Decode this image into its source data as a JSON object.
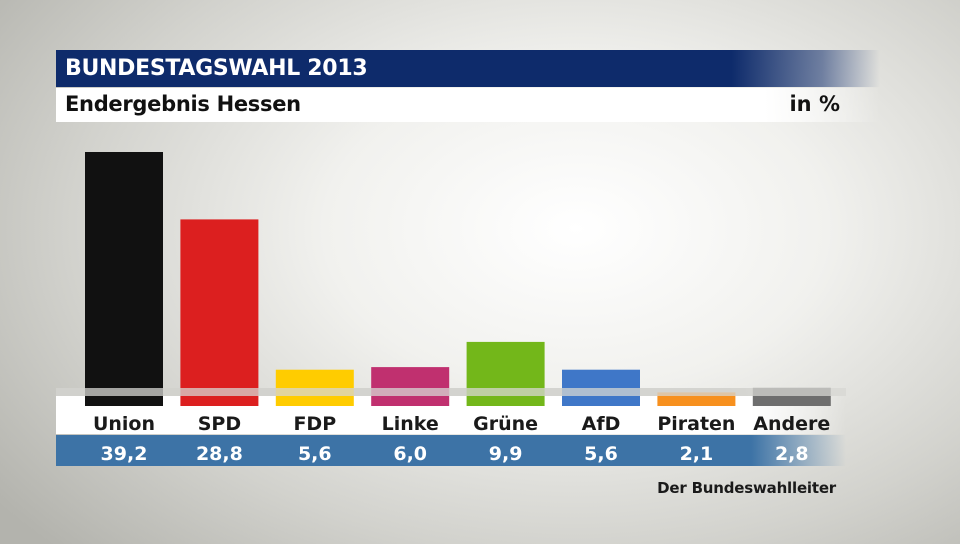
{
  "header": {
    "title": "BUNDESTAGSWAHL 2013",
    "subtitle": "Endergebnis Hessen",
    "unit": "in %"
  },
  "source": "Der Bundeswahlleiter",
  "chart_data": {
    "type": "bar",
    "title": "BUNDESTAGSWAHL 2013",
    "subtitle": "Endergebnis Hessen",
    "unit": "in %",
    "categories": [
      "Union",
      "SPD",
      "FDP",
      "Linke",
      "Grüne",
      "AfD",
      "Piraten",
      "Andere"
    ],
    "values": [
      39.2,
      28.8,
      5.6,
      6.0,
      9.9,
      5.6,
      2.1,
      2.8
    ],
    "value_labels": [
      "39,2",
      "28,8",
      "5,6",
      "6,0",
      "9,9",
      "5,6",
      "2,1",
      "2,8"
    ],
    "colors": [
      "#111111",
      "#dc1f1f",
      "#ffcc00",
      "#c0306f",
      "#73b71a",
      "#3f77c8",
      "#f7901e",
      "#6e6e6e"
    ],
    "ylim": [
      0,
      39.2
    ],
    "grid": false,
    "legend": "none"
  }
}
